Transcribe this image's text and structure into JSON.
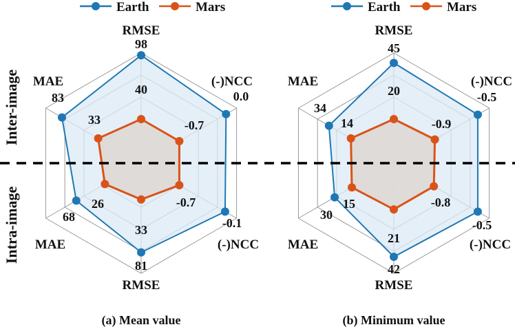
{
  "legend": {
    "items": [
      {
        "name": "Earth",
        "color": "#1f77b4"
      },
      {
        "name": "Mars",
        "color": "#d95319"
      }
    ]
  },
  "side_labels": {
    "top": "Inter-image",
    "bottom": "Intra-image"
  },
  "colors": {
    "earth": "#1f77b4",
    "earth_fill": "#dbe9f5",
    "mars": "#d95319",
    "mars_fill": "#ded9d6",
    "grid": "#9a9a9a"
  },
  "chart_data": [
    {
      "type": "radar",
      "caption": "(a) Mean value",
      "axes": [
        "RMSE",
        "(-)NCC",
        "(-)NCC",
        "RMSE",
        "MAE",
        "MAE"
      ],
      "groups": [
        "Inter-image",
        "Intra-image",
        "Intra-image",
        "Intra-image",
        "Inter-image"
      ],
      "axis_groups": [
        "Inter-image",
        "Inter-image",
        "Intra-image",
        "Intra-image",
        "Intra-image",
        "Inter-image"
      ],
      "series": [
        {
          "name": "Earth",
          "values": [
            98,
            0.0,
            -0.1,
            81,
            68,
            83
          ],
          "labels": [
            "98",
            "0.0",
            "-0.1",
            "81",
            "68",
            "83"
          ]
        },
        {
          "name": "Mars",
          "values": [
            40,
            -0.7,
            -0.7,
            33,
            26,
            33
          ],
          "labels": [
            "40",
            "-0.7",
            "-0.7",
            "33",
            "26",
            "33"
          ]
        }
      ]
    },
    {
      "type": "radar",
      "caption": "(b) Minimum value",
      "axes": [
        "RMSE",
        "(-)NCC",
        "(-)NCC",
        "RMSE",
        "MAE",
        "MAE"
      ],
      "axis_groups": [
        "Inter-image",
        "Inter-image",
        "Intra-image",
        "Intra-image",
        "Intra-image",
        "Inter-image"
      ],
      "series": [
        {
          "name": "Earth",
          "values": [
            45,
            -0.5,
            -0.5,
            42,
            30,
            34
          ],
          "labels": [
            "45",
            "-0.5",
            "-0.5",
            "42",
            "30",
            "34"
          ]
        },
        {
          "name": "Mars",
          "values": [
            20,
            -0.9,
            -0.8,
            21,
            15,
            14
          ],
          "labels": [
            "20",
            "-0.9",
            "-0.8",
            "21",
            "15",
            "14"
          ]
        }
      ]
    }
  ]
}
